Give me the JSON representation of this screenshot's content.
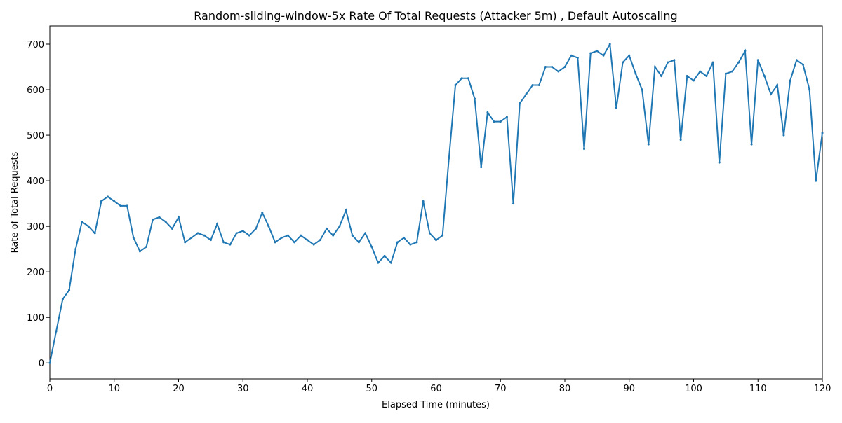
{
  "chart_data": {
    "type": "line",
    "title": "Random-sliding-window-5x Rate Of Total Requests (Attacker 5m) , Default Autoscaling",
    "x_label": "Elapsed Time (minutes)",
    "y_label": "Rate of Total Requests",
    "x": [
      0,
      1,
      2,
      3,
      4,
      5,
      6,
      7,
      8,
      9,
      10,
      11,
      12,
      13,
      14,
      15,
      16,
      17,
      18,
      19,
      20,
      21,
      22,
      23,
      24,
      25,
      26,
      27,
      28,
      29,
      30,
      31,
      32,
      33,
      34,
      35,
      36,
      37,
      38,
      39,
      40,
      41,
      42,
      43,
      44,
      45,
      46,
      47,
      48,
      49,
      50,
      51,
      52,
      53,
      54,
      55,
      56,
      57,
      58,
      59,
      60,
      61,
      62,
      63,
      64,
      65,
      66,
      67,
      68,
      69,
      70,
      71,
      72,
      73,
      74,
      75,
      76,
      77,
      78,
      79,
      80,
      81,
      82,
      83,
      84,
      85,
      86,
      87,
      88,
      89,
      90,
      91,
      92,
      93,
      94,
      95,
      96,
      97,
      98,
      99,
      100,
      101,
      102,
      103,
      104,
      105,
      106,
      107,
      108,
      109,
      110,
      111,
      112,
      113,
      114,
      115,
      116,
      117,
      118,
      119,
      120
    ],
    "series": [
      {
        "name": "Rate of Total Requests",
        "color": "#1f77b4",
        "values": [
          0,
          70,
          140,
          160,
          250,
          310,
          300,
          285,
          355,
          365,
          355,
          345,
          345,
          275,
          245,
          255,
          315,
          320,
          310,
          295,
          320,
          265,
          275,
          285,
          280,
          270,
          305,
          265,
          260,
          285,
          290,
          280,
          295,
          330,
          300,
          265,
          275,
          280,
          265,
          280,
          270,
          260,
          270,
          295,
          280,
          300,
          335,
          280,
          265,
          285,
          255,
          220,
          235,
          220,
          265,
          275,
          260,
          265,
          355,
          285,
          270,
          280,
          450,
          610,
          625,
          625,
          580,
          430,
          550,
          530,
          530,
          540,
          350,
          570,
          590,
          610,
          610,
          650,
          650,
          640,
          650,
          675,
          670,
          470,
          680,
          685,
          675,
          700,
          560,
          660,
          675,
          635,
          600,
          480,
          650,
          630,
          660,
          665,
          490,
          630,
          620,
          640,
          630,
          660,
          440,
          635,
          640,
          660,
          685,
          480,
          665,
          630,
          590,
          610,
          500,
          620,
          665,
          655,
          600,
          400,
          505
        ]
      }
    ],
    "xlim": [
      0,
      120
    ],
    "xticks": [
      0,
      10,
      20,
      30,
      40,
      50,
      60,
      70,
      80,
      90,
      100,
      110,
      120
    ],
    "ylim": [
      -35,
      740
    ],
    "yticks": [
      0,
      100,
      200,
      300,
      400,
      500,
      600,
      700
    ]
  }
}
